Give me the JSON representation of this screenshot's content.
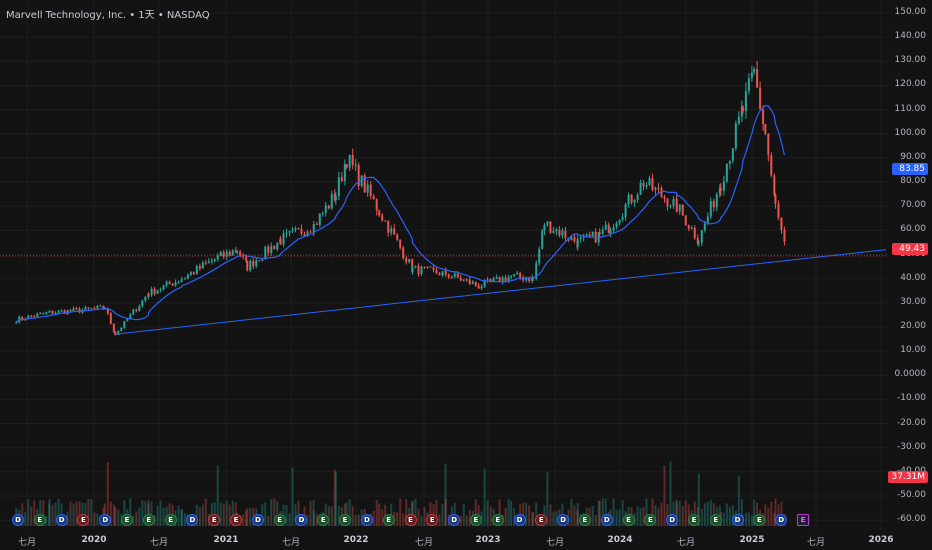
{
  "header": {
    "symbol_name": "Marvell Technology, Inc.",
    "sep1": " • ",
    "interval": "1天",
    "sep2": " • ",
    "exchange": "NASDAQ"
  },
  "price_axis": {
    "ticks": [
      "150.00",
      "140.00",
      "130.00",
      "120.00",
      "110.00",
      "100.00",
      "90.00",
      "80.00",
      "70.00",
      "60.00",
      "50.00",
      "40.00",
      "30.00",
      "20.00",
      "10.00",
      "0.0000",
      "-10.00",
      "-20.00",
      "-30.00",
      "-40.00",
      "-50.00",
      "-60.00"
    ]
  },
  "time_axis": {
    "ticks": [
      {
        "label": "七月",
        "year": false
      },
      {
        "label": "2020",
        "year": true
      },
      {
        "label": "七月",
        "year": false
      },
      {
        "label": "2021",
        "year": true
      },
      {
        "label": "七月",
        "year": false
      },
      {
        "label": "2022",
        "year": true
      },
      {
        "label": "七月",
        "year": false
      },
      {
        "label": "2023",
        "year": true
      },
      {
        "label": "七月",
        "year": false
      },
      {
        "label": "2024",
        "year": true
      },
      {
        "label": "七月",
        "year": false
      },
      {
        "label": "2025",
        "year": true
      },
      {
        "label": "七月",
        "year": false
      },
      {
        "label": "2026",
        "year": true
      }
    ]
  },
  "markers": {
    "ma_price": {
      "value": "83.85",
      "color": "#2962ff"
    },
    "last_price": {
      "value": "49.43",
      "color": "#f23645"
    },
    "volume": {
      "value": "37.31M",
      "color": "#f23645"
    }
  },
  "colors": {
    "up": "#26a69a",
    "down": "#ef5350",
    "ma": "#2962ff",
    "trend": "#2962ff",
    "bg": "#131313"
  },
  "earnings_events": {
    "label": "E",
    "dividend_label": "D",
    "items": [
      "div",
      "pos",
      "div",
      "neg",
      "div",
      "pos",
      "pos",
      "pos",
      "div",
      "neg",
      "neg",
      "div",
      "pos",
      "div",
      "pos",
      "pos",
      "div",
      "pos",
      "neg",
      "neg",
      "div",
      "pos",
      "pos",
      "div",
      "neg",
      "div",
      "pos",
      "div",
      "pos",
      "pos",
      "div",
      "pos",
      "pos",
      "div",
      "pos",
      "div",
      "future"
    ]
  },
  "chart_data": {
    "type": "candlestick",
    "symbol": "Marvell Technology, Inc.",
    "interval": "1天",
    "exchange": "NASDAQ",
    "ylim": [
      -60,
      150
    ],
    "last_price": 49.43,
    "moving_average_last": 83.85,
    "last_volume": "37.31M",
    "price_path": [
      {
        "date": "2019-06",
        "close": 23
      },
      {
        "date": "2019-09",
        "close": 26
      },
      {
        "date": "2019-12",
        "close": 27
      },
      {
        "date": "2020-02",
        "close": 28
      },
      {
        "date": "2020-03",
        "close": 17
      },
      {
        "date": "2020-06",
        "close": 34
      },
      {
        "date": "2020-09",
        "close": 40
      },
      {
        "date": "2020-12",
        "close": 48
      },
      {
        "date": "2021-02",
        "close": 52
      },
      {
        "date": "2021-03",
        "close": 45
      },
      {
        "date": "2021-06",
        "close": 56
      },
      {
        "date": "2021-09",
        "close": 62
      },
      {
        "date": "2021-11",
        "close": 75
      },
      {
        "date": "2021-12",
        "close": 90
      },
      {
        "date": "2022-03",
        "close": 68
      },
      {
        "date": "2022-06",
        "close": 44
      },
      {
        "date": "2022-09",
        "close": 42
      },
      {
        "date": "2022-12",
        "close": 37
      },
      {
        "date": "2023-03",
        "close": 41
      },
      {
        "date": "2023-05",
        "close": 40
      },
      {
        "date": "2023-06",
        "close": 63
      },
      {
        "date": "2023-09",
        "close": 55
      },
      {
        "date": "2023-11",
        "close": 58
      },
      {
        "date": "2023-12",
        "close": 62
      },
      {
        "date": "2024-03",
        "close": 80
      },
      {
        "date": "2024-06",
        "close": 70
      },
      {
        "date": "2024-08",
        "close": 56
      },
      {
        "date": "2024-10",
        "close": 80
      },
      {
        "date": "2024-12",
        "close": 110
      },
      {
        "date": "2025-01",
        "close": 125
      },
      {
        "date": "2025-02",
        "close": 100
      },
      {
        "date": "2025-03",
        "close": 70
      },
      {
        "date": "2025-04",
        "close": 49.43
      }
    ],
    "trendline": [
      {
        "date": "2020-03",
        "value": 17
      },
      {
        "date": "2026-01",
        "value": 52
      }
    ]
  }
}
